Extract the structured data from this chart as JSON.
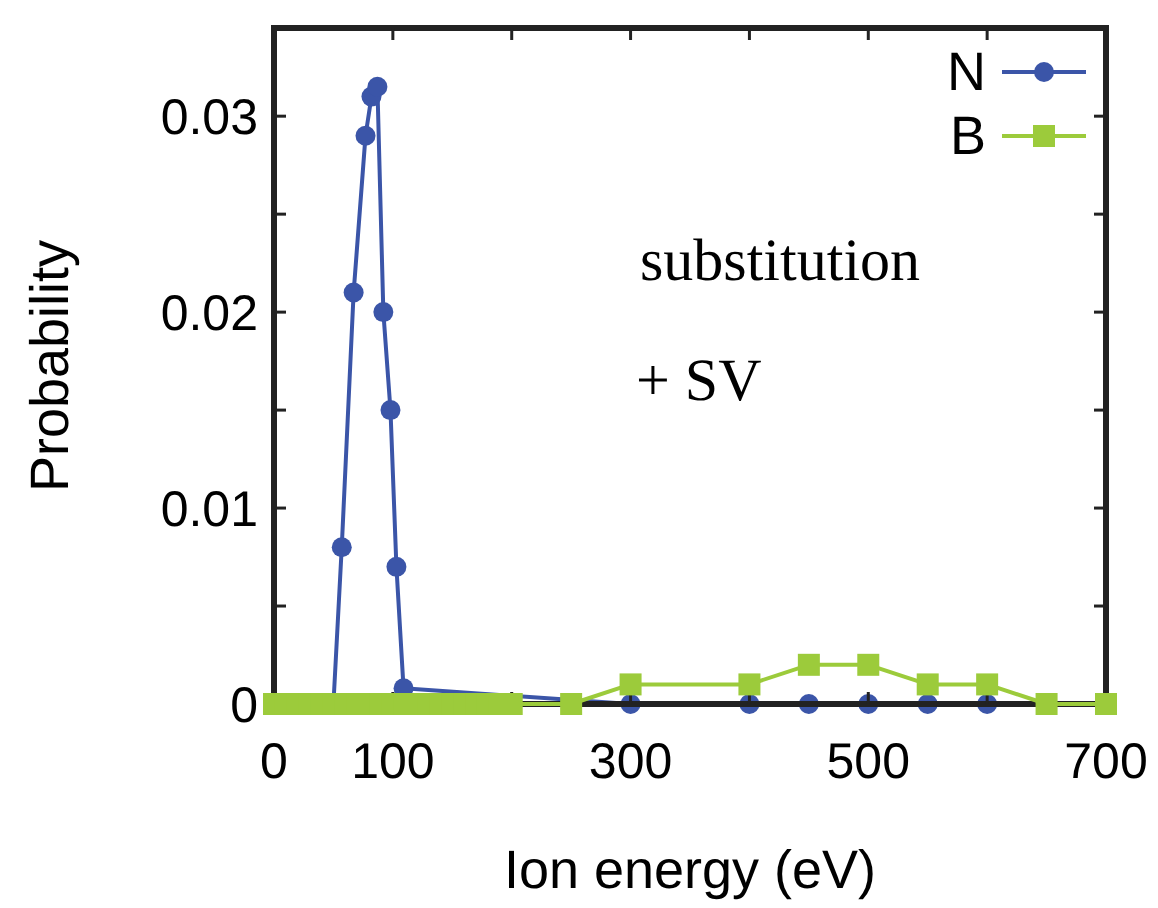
{
  "chart_data": {
    "type": "line",
    "xlabel": "Ion energy (eV)",
    "ylabel": "Probability",
    "xlim": [
      0,
      700
    ],
    "ylim": [
      0,
      0.0345
    ],
    "xticks": [
      0,
      100,
      {
        "value": 200,
        "label": null
      },
      300,
      {
        "value": 400,
        "label": null
      },
      500,
      {
        "value": 600,
        "label": null
      },
      700
    ],
    "yticks": [
      0,
      {
        "value": 0.005,
        "label": null
      },
      0.01,
      {
        "value": 0.015,
        "label": null
      },
      0.02,
      {
        "value": 0.025,
        "label": null
      },
      0.03
    ],
    "grid": false,
    "legend": "top right",
    "annotations": [
      "substitution",
      "+ SV"
    ],
    "series": [
      {
        "name": "N",
        "color": "#3b55a8",
        "marker": "circle",
        "x": [
          50,
          57,
          67,
          77,
          82,
          87,
          92,
          98,
          103,
          109,
          300,
          400,
          450,
          500,
          550,
          600
        ],
        "values": [
          0,
          0.008,
          0.021,
          0.029,
          0.031,
          0.0315,
          0.02,
          0.015,
          0.007,
          0.0008,
          0,
          0,
          0,
          0,
          0,
          0
        ]
      },
      {
        "name": "B",
        "color": "#9ccb3b",
        "marker": "square",
        "x": [
          0,
          10,
          20,
          30,
          40,
          50,
          60,
          70,
          80,
          90,
          100,
          110,
          120,
          130,
          140,
          150,
          160,
          170,
          180,
          190,
          200,
          250,
          300,
          400,
          450,
          500,
          550,
          600,
          650,
          700
        ],
        "values": [
          0,
          0,
          0,
          0,
          0,
          0,
          0,
          0,
          0,
          0,
          0,
          0,
          0,
          0,
          0,
          0,
          0,
          0,
          0,
          0,
          0,
          0,
          0.001,
          0.001,
          0.002,
          0.002,
          0.001,
          0.001,
          0,
          0
        ]
      }
    ]
  }
}
